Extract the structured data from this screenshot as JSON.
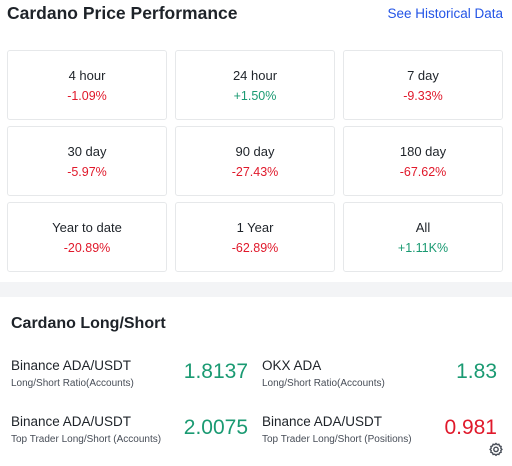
{
  "header": {
    "title": "Cardano Price Performance",
    "link": "See Historical Data"
  },
  "performance": [
    {
      "label": "4 hour",
      "value": "-1.09%",
      "trend": "neg"
    },
    {
      "label": "24 hour",
      "value": "+1.50%",
      "trend": "pos"
    },
    {
      "label": "7 day",
      "value": "-9.33%",
      "trend": "neg"
    },
    {
      "label": "30 day",
      "value": "-5.97%",
      "trend": "neg"
    },
    {
      "label": "90 day",
      "value": "-27.43%",
      "trend": "neg"
    },
    {
      "label": "180 day",
      "value": "-67.62%",
      "trend": "neg"
    },
    {
      "label": "Year to date",
      "value": "-20.89%",
      "trend": "neg"
    },
    {
      "label": "1 Year",
      "value": "-62.89%",
      "trend": "neg"
    },
    {
      "label": "All",
      "value": "+1.11K%",
      "trend": "pos"
    }
  ],
  "longshort": {
    "title": "Cardano Long/Short",
    "items": [
      {
        "pair": "Binance ADA/USDT",
        "sub": "Long/Short Ratio(Accounts)",
        "value": "1.8137",
        "color": "#1a9a72"
      },
      {
        "pair": "OKX ADA",
        "sub": "Long/Short Ratio(Accounts)",
        "value": "1.83",
        "color": "#1a9a72"
      },
      {
        "pair": "Binance ADA/USDT",
        "sub": "Top Trader Long/Short (Accounts)",
        "value": "2.0075",
        "color": "#1a9a72"
      },
      {
        "pair": "Binance ADA/USDT",
        "sub": "Top Trader Long/Short (Positions)",
        "value": "0.981",
        "color": "#e0192b"
      }
    ]
  },
  "icons": {
    "settings": "gear-icon"
  },
  "colors": {
    "positive": "#1a9a72",
    "negative": "#e0192b",
    "link": "#2354e6"
  }
}
